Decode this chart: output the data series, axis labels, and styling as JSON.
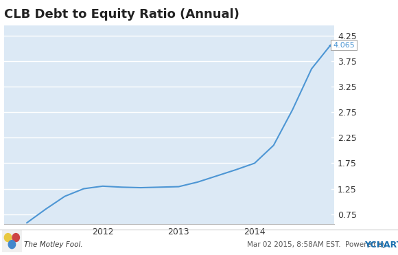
{
  "title": "CLB Debt to Equity Ratio (Annual)",
  "x_values": [
    2011.0,
    2011.25,
    2011.5,
    2011.75,
    2012.0,
    2012.25,
    2012.5,
    2012.75,
    2013.0,
    2013.25,
    2013.5,
    2013.75,
    2014.0,
    2014.25,
    2014.5,
    2014.75,
    2015.0
  ],
  "y_values": [
    0.58,
    0.85,
    1.1,
    1.25,
    1.3,
    1.28,
    1.27,
    1.28,
    1.29,
    1.38,
    1.5,
    1.62,
    1.75,
    2.1,
    2.8,
    3.6,
    4.065
  ],
  "line_color": "#4d96d4",
  "fill_color": "#dce9f5",
  "annotation_value": "4.065",
  "annotation_color": "#4d96d4",
  "yticks": [
    0.75,
    1.25,
    1.75,
    2.25,
    2.75,
    3.25,
    3.75,
    4.25
  ],
  "xticks": [
    2012,
    2013,
    2014
  ],
  "ylim": [
    0.55,
    4.45
  ],
  "xlim": [
    2010.7,
    2015.05
  ],
  "plot_bg_color": "#dce9f5",
  "grid_color": "#ffffff",
  "title_fontsize": 13,
  "footer_left": "The Motley Fool.",
  "footer_right": "Mar 02 2015, 8:58AM EST.  Powered by "
}
